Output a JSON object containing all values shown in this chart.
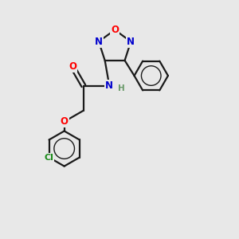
{
  "bg_color": "#e8e8e8",
  "bond_color": "#1a1a1a",
  "colors": {
    "N": "#0000cd",
    "O": "#ff0000",
    "Cl": "#1a8a1a",
    "C": "#1a1a1a",
    "H": "#6a9a6a"
  },
  "font_size": 8.5,
  "lw": 1.6
}
